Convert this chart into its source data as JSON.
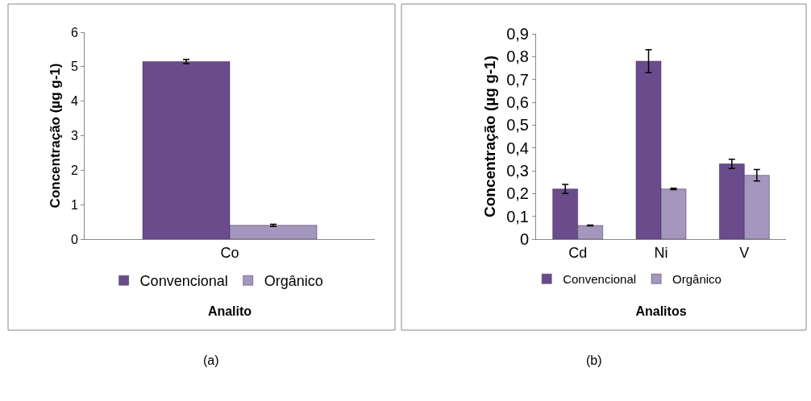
{
  "chart_data": [
    {
      "type": "bar",
      "categories": [
        "Co"
      ],
      "xlabel": "Analito",
      "ylabel": "Concentração (µg g-1)",
      "ylim": [
        0,
        6
      ],
      "yticks": [
        0,
        1,
        2,
        3,
        4,
        5,
        6
      ],
      "legend": "bottom",
      "series": [
        {
          "name": "Convencional",
          "color": "#6a4c8c",
          "values": [
            5.15
          ],
          "errors": [
            0.06
          ]
        },
        {
          "name": "Orgânico",
          "color": "#a497bd",
          "values": [
            0.4
          ],
          "errors": [
            0.03
          ]
        }
      ],
      "annotations": [
        "(a)"
      ]
    },
    {
      "type": "bar",
      "categories": [
        "Cd",
        "Ni",
        "V"
      ],
      "xlabel": "Analitos",
      "ylabel": "Concentração (µg g-1)",
      "ylim": [
        0,
        0.9
      ],
      "yticks": [
        {
          "value": 0,
          "label": "0"
        },
        {
          "value": 0.1,
          "label": "0,1"
        },
        {
          "value": 0.2,
          "label": "0,2"
        },
        {
          "value": 0.3,
          "label": "0,3"
        },
        {
          "value": 0.4,
          "label": "0,4"
        },
        {
          "value": 0.5,
          "label": "0,5"
        },
        {
          "value": 0.6,
          "label": "0,6"
        },
        {
          "value": 0.7,
          "label": "0,7"
        },
        {
          "value": 0.8,
          "label": "0,8"
        },
        {
          "value": 0.9,
          "label": "0,9"
        }
      ],
      "legend": "bottom",
      "series": [
        {
          "name": "Convencional",
          "color": "#6a4c8c",
          "values": [
            0.22,
            0.78,
            0.33
          ],
          "errors": [
            0.02,
            0.05,
            0.02
          ]
        },
        {
          "name": "Orgânico",
          "color": "#a497bd",
          "values": [
            0.06,
            0.22,
            0.28
          ],
          "errors": [
            0.002,
            0.003,
            0.025
          ]
        }
      ],
      "annotations": [
        "(b)"
      ]
    }
  ]
}
